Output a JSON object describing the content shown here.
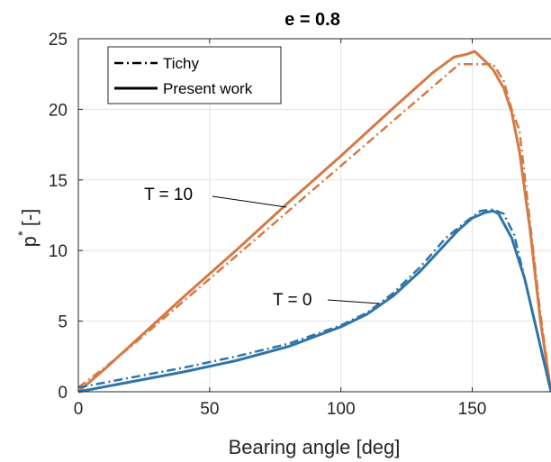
{
  "chart_data": {
    "type": "line",
    "title": "e = 0.8",
    "xlabel": "Bearing angle [deg]",
    "ylabel_base": "p",
    "ylabel_sup": "*",
    "ylabel_unit": "[-]",
    "xlim": [
      0,
      180
    ],
    "ylim": [
      0,
      25
    ],
    "xticks": [
      0,
      50,
      100,
      150
    ],
    "yticks": [
      0,
      5,
      10,
      15,
      20,
      25
    ],
    "grid": true,
    "legend_position": "top-left",
    "legend": [
      {
        "label": "Tichy",
        "style": "dashdot"
      },
      {
        "label": "Present work",
        "style": "solid"
      }
    ],
    "colors": {
      "T0": "#2f74a8",
      "T10": "#d47a45",
      "axis": "#262626",
      "grid": "#e3e3e3"
    },
    "series": [
      {
        "group": "T10",
        "style": "dashdot",
        "color": "#d47a45",
        "x": [
          0,
          10,
          20,
          40,
          60,
          80,
          100,
          120,
          140,
          145,
          150,
          155,
          158,
          162,
          165,
          168,
          172,
          176,
          180
        ],
        "y": [
          0.3,
          1.7,
          3.2,
          6.4,
          9.6,
          12.8,
          16.0,
          19.2,
          22.4,
          23.2,
          23.2,
          23.2,
          23.2,
          22.0,
          20.0,
          18.5,
          12.0,
          5.5,
          0
        ]
      },
      {
        "group": "T10",
        "style": "solid",
        "color": "#d47a45",
        "x": [
          0,
          10,
          20,
          40,
          60,
          80,
          100,
          120,
          135,
          143,
          148,
          151,
          155,
          158,
          162,
          165,
          168,
          172,
          176,
          180
        ],
        "y": [
          0,
          1.6,
          3.3,
          6.7,
          10.0,
          13.4,
          16.7,
          20.1,
          22.6,
          23.7,
          23.9,
          24.1,
          23.4,
          22.8,
          21.5,
          19.8,
          17.0,
          11.5,
          5.0,
          0
        ]
      },
      {
        "group": "T0",
        "style": "dashdot",
        "color": "#2f74a8",
        "x": [
          0,
          20,
          40,
          60,
          80,
          100,
          110,
          120,
          130,
          140,
          148,
          153,
          158,
          162,
          166,
          170,
          175,
          180
        ],
        "y": [
          0.3,
          1.0,
          1.7,
          2.5,
          3.4,
          4.7,
          5.6,
          7.0,
          8.8,
          10.9,
          12.1,
          12.8,
          12.9,
          12.6,
          11.1,
          8.0,
          4.0,
          0
        ]
      },
      {
        "group": "T0",
        "style": "solid",
        "color": "#2f74a8",
        "x": [
          0,
          20,
          40,
          60,
          80,
          100,
          110,
          120,
          130,
          140,
          145,
          150,
          155,
          158,
          160,
          165,
          170,
          175,
          180
        ],
        "y": [
          0,
          0.7,
          1.4,
          2.2,
          3.2,
          4.6,
          5.5,
          6.8,
          8.5,
          10.5,
          11.5,
          12.3,
          12.7,
          12.8,
          12.6,
          10.9,
          8.0,
          4.0,
          0
        ]
      }
    ],
    "annotations": [
      {
        "text": "T = 10",
        "x": 81,
        "y": 13.0
      },
      {
        "text": "T = 0",
        "x": 117,
        "y": 6.5
      }
    ]
  }
}
